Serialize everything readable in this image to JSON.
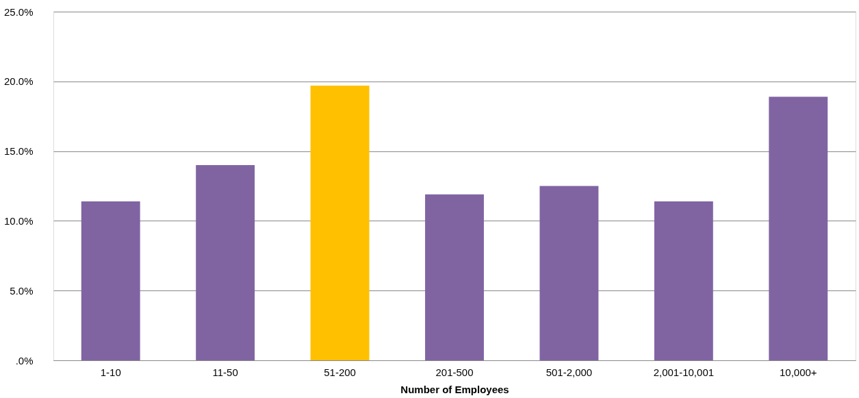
{
  "chart_data": {
    "type": "bar",
    "xlabel": "Number of Employees",
    "categories": [
      "1-10",
      "11-50",
      "51-200",
      "201-500",
      "501-2,000",
      "2,001-10,001",
      "10,000+"
    ],
    "values": [
      11.4,
      14.0,
      19.7,
      11.9,
      12.5,
      11.4,
      18.9
    ],
    "colors": [
      "#8064a2",
      "#8064a2",
      "#ffc000",
      "#8064a2",
      "#8064a2",
      "#8064a2",
      "#8064a2"
    ],
    "ylim": [
      0,
      25
    ],
    "yticks": [
      {
        "value": 0,
        "label": ".0%"
      },
      {
        "value": 5,
        "label": "5.0%"
      },
      {
        "value": 10,
        "label": "10.0%"
      },
      {
        "value": 15,
        "label": "15.0%"
      },
      {
        "value": 20,
        "label": "20.0%"
      },
      {
        "value": 25,
        "label": "25.0%"
      }
    ],
    "grid": "y"
  }
}
